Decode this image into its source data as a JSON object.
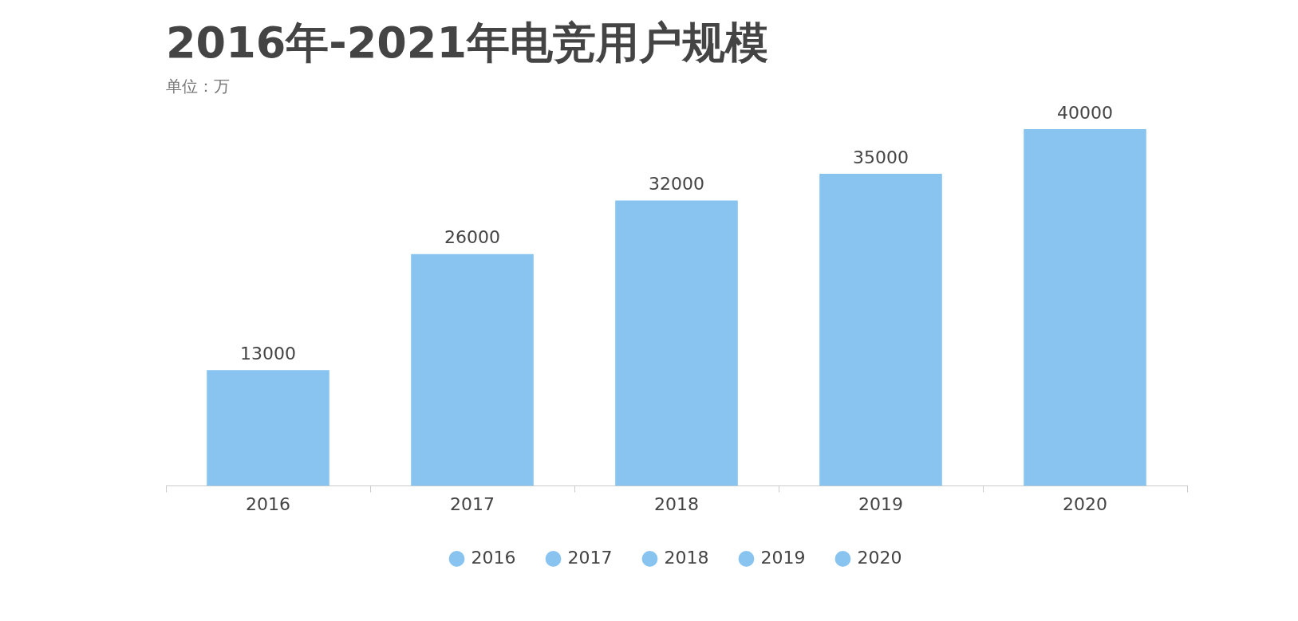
{
  "chart_data": {
    "type": "bar",
    "title": "2016年-2021年电竞用户规模",
    "subtitle": "单位：万",
    "categories": [
      "2016",
      "2017",
      "2018",
      "2019",
      "2020"
    ],
    "series": [
      {
        "name": "2016",
        "color": "#6cb4ec",
        "values": [
          13000,
          null,
          null,
          null,
          null
        ]
      },
      {
        "name": "2017",
        "color": "#6cb4ec",
        "values": [
          null,
          26000,
          null,
          null,
          null
        ]
      },
      {
        "name": "2018",
        "color": "#6cb4ec",
        "values": [
          null,
          null,
          32000,
          null,
          null
        ]
      },
      {
        "name": "2019",
        "color": "#6cb4ec",
        "values": [
          null,
          null,
          null,
          35000,
          null
        ]
      },
      {
        "name": "2020",
        "color": "#6cb4ec",
        "values": [
          null,
          null,
          null,
          null,
          40000
        ]
      }
    ],
    "data_labels": true,
    "legend": "bottom",
    "grid": false
  }
}
